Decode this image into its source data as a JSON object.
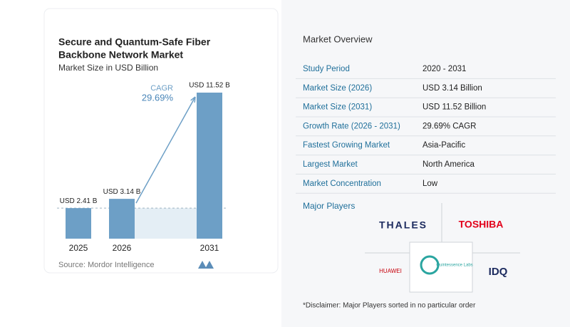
{
  "chart_data": {
    "type": "bar",
    "title": [
      "Secure and Quantum-Safe Fiber",
      "Backbone Network Market"
    ],
    "subtitle": "Market Size in USD Billion",
    "categories": [
      "2025",
      "2026",
      "2031"
    ],
    "values": [
      2.41,
      3.14,
      11.52
    ],
    "value_labels": [
      "USD 2.41 B",
      "USD 3.14 B",
      "USD 11.52 B"
    ],
    "color": "#6d9fc6",
    "annotation": [
      "CAGR",
      "29.69%"
    ],
    "source": "Source: Mordor Intelligence"
  },
  "overview": {
    "title": "Market Overview",
    "rows": [
      [
        "Study Period",
        "2020 - 2031"
      ],
      [
        "Market Size (2026)",
        "USD 3.14 Billion"
      ],
      [
        "Market Size (2031)",
        "USD 11.52 Billion"
      ],
      [
        "Growth Rate (2026 - 2031)",
        "29.69% CAGR"
      ],
      [
        "Fastest Growing Market",
        "Asia-Pacific"
      ],
      [
        "Largest Market",
        "North America"
      ],
      [
        "Market Concentration",
        "Low"
      ]
    ],
    "players_title": "Major Players",
    "players": [
      "THALES",
      "TOSHIBA",
      "HUAWEI",
      "Quintessence Labs",
      "IDQ"
    ],
    "disclaimer": "*Disclaimer: Major Players sorted in no particular order"
  }
}
